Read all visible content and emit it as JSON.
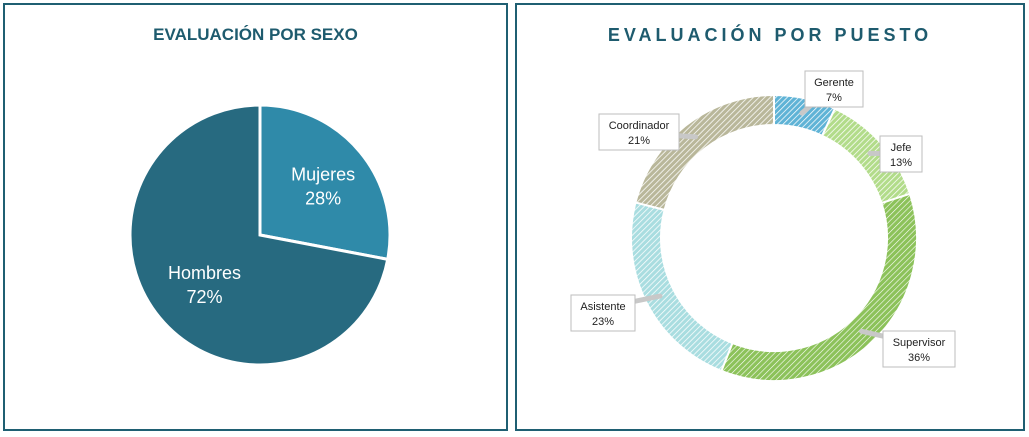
{
  "chart_data": [
    {
      "type": "pie",
      "title": "EVALUACIÓN POR SEXO",
      "categories": [
        "Mujeres",
        "Hombres"
      ],
      "values": [
        28,
        72
      ],
      "labels": [
        "28%",
        "72%"
      ],
      "colors": [
        "#2f8aa9",
        "#276a80"
      ],
      "legend": "none"
    },
    {
      "type": "pie",
      "title": "EVALUACIÓN POR PUESTO",
      "categories": [
        "Gerente",
        "Jefe",
        "Supervisor",
        "Asistente",
        "Coordinador"
      ],
      "values": [
        7,
        13,
        36,
        23,
        21
      ],
      "labels": [
        "7%",
        "13%",
        "36%",
        "23%",
        "21%"
      ],
      "colors": [
        "#5fb3d6",
        "#b2dc8a",
        "#8cc25a",
        "#a9dde0",
        "#b9b79a"
      ],
      "legend": "none"
    }
  ]
}
